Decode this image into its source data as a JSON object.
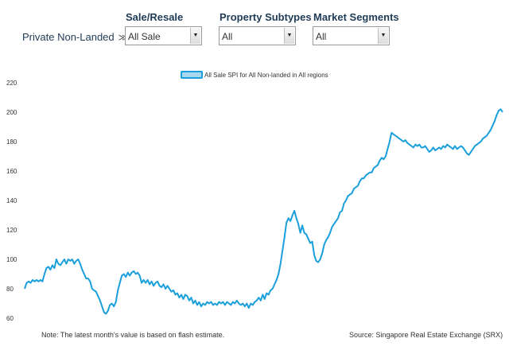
{
  "header": {
    "breadcrumb": "Private Non-Landed",
    "breadcrumb_icon": "double-chevron-right-icon",
    "filters": [
      {
        "label": "Sale/Resale",
        "value": "All Sale"
      },
      {
        "label": "Property Subtypes",
        "value": "All"
      },
      {
        "label": "Market Segments",
        "value": "All"
      }
    ],
    "dropdown_icon": "dropdown-arrow-icon"
  },
  "colors": {
    "line": "#1a9fdb",
    "legend_fill": "#a8d8f0",
    "axis_text": "#333333"
  },
  "chart_data": {
    "type": "line",
    "title": "",
    "legend": "All Sale SPI for All Non-landed in All regions",
    "xlabel": "",
    "ylabel": "",
    "ylim": [
      60,
      220
    ],
    "yticks": [
      60,
      80,
      100,
      120,
      140,
      160,
      180,
      200,
      220
    ],
    "grid": false,
    "series": [
      {
        "name": "All Sale SPI for All Non-landed in All regions",
        "values": [
          80,
          84,
          85,
          84,
          86,
          85,
          86,
          85,
          86,
          85,
          90,
          94,
          95,
          93,
          96,
          94,
          100,
          97,
          96,
          98,
          100,
          97,
          100,
          99,
          100,
          97,
          99,
          100,
          97,
          93,
          90,
          87,
          87,
          85,
          80,
          79,
          78,
          75,
          72,
          68,
          64,
          63,
          65,
          69,
          70,
          68,
          71,
          79,
          84,
          89,
          90,
          88,
          91,
          89,
          91,
          92,
          90,
          91,
          89,
          84,
          86,
          84,
          86,
          83,
          85,
          82,
          84,
          85,
          82,
          81,
          83,
          80,
          82,
          80,
          78,
          79,
          76,
          77,
          74,
          76,
          73,
          76,
          75,
          72,
          74,
          70,
          72,
          69,
          71,
          68,
          70,
          69,
          71,
          70,
          71,
          69,
          70,
          69,
          71,
          70,
          71,
          69,
          71,
          70,
          69,
          71,
          70,
          72,
          70,
          69,
          70,
          68,
          70,
          67,
          70,
          69,
          71,
          72,
          74,
          72,
          76,
          73,
          77,
          76,
          79,
          80,
          83,
          86,
          90,
          97,
          106,
          115,
          125,
          128,
          126,
          130,
          133,
          128,
          124,
          118,
          123,
          118,
          117,
          114,
          111,
          112,
          103,
          99,
          98,
          100,
          104,
          110,
          113,
          115,
          118,
          122,
          124,
          126,
          128,
          132,
          133,
          138,
          140,
          143,
          144,
          145,
          148,
          149,
          150,
          153,
          155,
          155,
          157,
          158,
          159,
          159,
          162,
          163,
          164,
          167,
          169,
          168,
          170,
          175,
          180,
          186,
          185,
          184,
          183,
          182,
          181,
          180,
          181,
          179,
          178,
          177,
          176,
          178,
          177,
          178,
          176,
          176,
          177,
          175,
          173,
          174,
          176,
          174,
          175,
          176,
          175,
          177,
          176,
          178,
          177,
          176,
          175,
          177,
          175,
          176,
          177,
          176,
          174,
          172,
          171,
          173,
          175,
          177,
          178,
          179,
          180,
          182,
          183,
          184,
          186,
          188,
          191,
          194,
          198,
          201,
          202,
          200
        ]
      }
    ]
  },
  "footer": {
    "note": "Note: The latest month's value is based on flash estimate.",
    "source": "Source: Singapore Real Estate Exchange (SRX)"
  }
}
